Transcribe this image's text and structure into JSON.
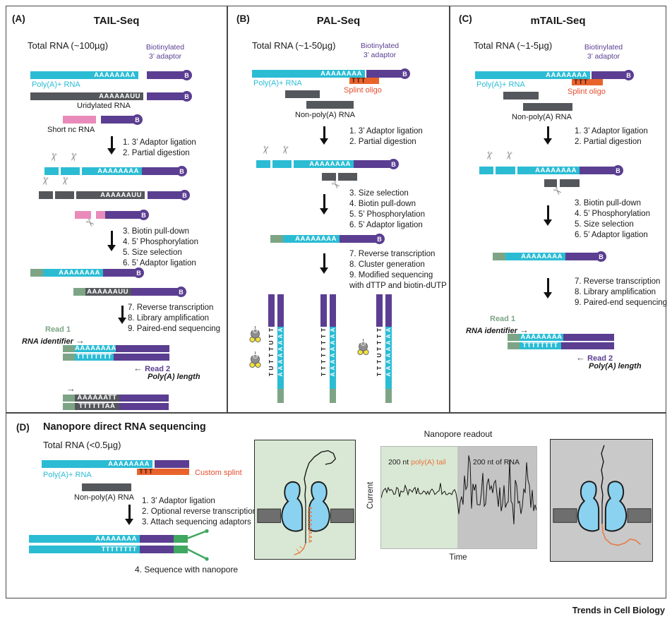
{
  "journal": "Trends in Cell Biology",
  "glyphs": {
    "b": "B",
    "right_arrow": "→",
    "left_arrow": "←",
    "scissors": "✂"
  },
  "colors": {
    "cyan": "#2bbcd4",
    "purple": "#5b3e91",
    "gray": "#54575b",
    "pink": "#e98bba",
    "sage": "#7da585",
    "orange": "#e8632c",
    "splint_text": "#e44d2e",
    "fork_green": "#3fa75f",
    "box_green": "#d9e8d4",
    "box_gray": "#c9c9c9",
    "blob_blue": "#8ad2ef",
    "membrane": "#6e6e6e",
    "biotin_yellow": "#f2e23c",
    "streptavidin": "#8e8e8e"
  },
  "panels": {
    "A": {
      "label": "(A)",
      "title": "TAIL-Seq",
      "input": "Total RNA (~100µg)",
      "adaptor_line1": "Biotinylated",
      "adaptor_line2": "3’ adaptor",
      "polya_label": "Poly(A)+ RNA",
      "seq_a": "AAAAAAAA",
      "seq_auu": "AAAAAAUU",
      "uridylated_label": "Uridylated RNA",
      "short_nc_label": "Short nc RNA",
      "steps1": [
        "1. 3’ Adaptor ligation",
        "2. Partial digestion"
      ],
      "steps2": [
        "3. Biotin pull-down",
        "4. 5’ Phosphorylation",
        "5. Size selection",
        "6. 5’ Adaptor ligation"
      ],
      "steps3": [
        "7. Reverse transcription",
        "8. Library amplification",
        "9. Paired-end sequencing"
      ],
      "read1": "Read 1",
      "rna_identifier": "RNA identifier",
      "read2": "Read 2",
      "polya_length": "Poly(A) length",
      "pair1_top": "AAAAAAAA",
      "pair1_bottom": "TTTTTTTT",
      "pair2_top": "AAAAAATT",
      "pair2_bottom": "TTTTTTAA"
    },
    "B": {
      "label": "(B)",
      "title": "PAL-Seq",
      "input": "Total RNA (~1-50µg)",
      "adaptor_line1": "Biotinylated",
      "adaptor_line2": "3’ adaptor",
      "polya_label": "Poly(A)+ RNA",
      "seq_a": "AAAAAAAA",
      "splint_seq": "TTT",
      "splint_label": "Splint oligo",
      "non_polya_label": "Non-poly(A) RNA",
      "steps1": [
        "1. 3’ Adaptor ligation",
        "2. Partial digestion"
      ],
      "steps2": [
        "3. Size selection",
        "4. Biotin pull-down",
        "5. 5’ Phosphorylation",
        "6. 5’ Adaptor ligation"
      ],
      "steps3": [
        "7. Reverse transcription",
        "8. Cluster generation",
        "9. Modified sequencing",
        "with dTTP and biotin-dUTP"
      ],
      "vertical_a": "AAAAAAAA",
      "strands": [
        {
          "letters": "TTUTTTUT",
          "biotin": [
            2,
            6
          ]
        },
        {
          "letters": "TTTTTTTT",
          "biotin": []
        },
        {
          "letters": "TTTTUTTT",
          "biotin": [
            4
          ]
        }
      ]
    },
    "C": {
      "label": "(C)",
      "title": "mTAIL-Seq",
      "input": "Total RNA (~1-5µg)",
      "adaptor_line1": "Biotinylated",
      "adaptor_line2": "3’ adaptor",
      "polya_label": "Poly(A)+ RNA",
      "seq_a": "AAAAAAAA",
      "splint_seq": "TTT",
      "splint_label": "Splint oligo",
      "non_polya_label": "Non-poly(A) RNA",
      "steps1": [
        "1. 3’ Adaptor ligation",
        "2. Partial digestion"
      ],
      "steps2": [
        "3. Biotin pull-down",
        "4. 5’ Phosphorylation",
        "5. Size selection",
        "6. 5’ Adaptor ligation"
      ],
      "steps3": [
        "7. Reverse transcription",
        "8. Library amplification",
        "9. Paired-end sequencing"
      ],
      "read1": "Read 1",
      "rna_identifier": "RNA identifier",
      "read2": "Read 2",
      "polya_length": "Poly(A) length",
      "pair_top": "AAAAAAAA",
      "pair_bottom": "TTTTTTTT"
    },
    "D": {
      "label": "(D)",
      "title": "Nanopore direct RNA sequencing",
      "input": "Total RNA (<0.5µg)",
      "seq_a": "AAAAAAAA",
      "seq_t": "TTTTTTTT",
      "splint_seq": "TTT",
      "custom_splint_label": "Custom splint",
      "polya_label": "Poly(A)+ RNA",
      "non_polya_label": "Non-poly(A) RNA",
      "steps": [
        "1. 3’ Adaptor ligation",
        "2. Optional reverse transcription",
        "3. Attach sequencing adaptors"
      ],
      "step4": "4. Sequence with nanopore",
      "readout": {
        "title": "Nanopore readout",
        "ylabel": "Current",
        "xlabel": "Time",
        "region1_prefix": "200 nt ",
        "region1_highlight": "poly(A) tail",
        "region2": "200 nt of RNA"
      }
    }
  }
}
